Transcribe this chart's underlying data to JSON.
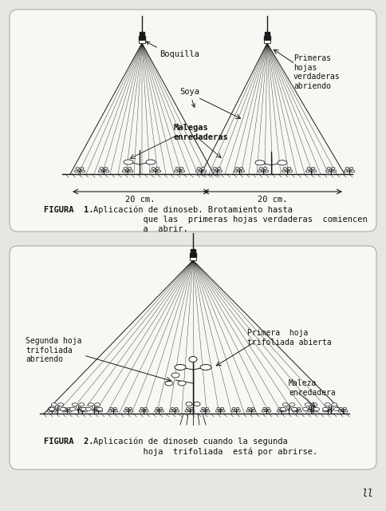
{
  "bg_color": "#e8e6e3",
  "panel_bg": "#f8f7f4",
  "line_color": "#1a1a1a",
  "text_color": "#111111",
  "figure1": {
    "caption_bold": "FIGURA  1.",
    "caption_text": "Aplicación de dinoseb. Brotamiento hasta\n          que las  primeras hojas verdaderas  comiencen\n          a  abrir.",
    "labels": {
      "boquilla": "Boquilla",
      "soya": "Soya",
      "malegas": "Malegas\nenredaderas",
      "primeras": "Primeras\nhojas\nverdaderas\nabriendo",
      "20cm_left": "20 cm.",
      "20cm_right": "20 cm."
    }
  },
  "figure2": {
    "caption_bold": "FIGURA  2.",
    "caption_text": "Aplicación de dinoseb cuando la segunda\n          hoja  trifoliada  está por abrirse.",
    "labels": {
      "primera": "Primera  hoja\ntrifoliada abierta",
      "segunda": "Segunda hoja\ntrifoliada\nabriendo",
      "maleza": "Maleza\nenredadera"
    }
  },
  "page_number": "ll"
}
